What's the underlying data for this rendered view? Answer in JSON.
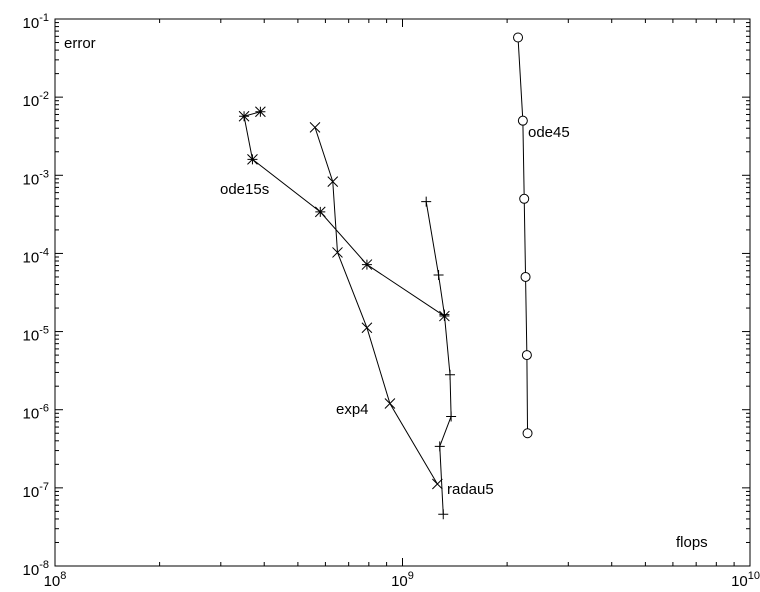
{
  "chart_data": {
    "type": "line",
    "title": "",
    "xlabel": "flops",
    "ylabel": "error",
    "x_scale": "log",
    "y_scale": "log",
    "xlim": [
      100000000,
      10000000000
    ],
    "ylim": [
      1e-08,
      0.1
    ],
    "grid": false,
    "legend": "none",
    "x_ticks": [
      {
        "value": 100000000,
        "base": "10",
        "exp": "8"
      },
      {
        "value": 1000000000,
        "base": "10",
        "exp": "9"
      },
      {
        "value": 10000000000,
        "base": "10",
        "exp": "10"
      }
    ],
    "y_ticks": [
      {
        "value": 0.1,
        "base": "10",
        "exp": "-1"
      },
      {
        "value": 0.01,
        "base": "10",
        "exp": "-2"
      },
      {
        "value": 0.001,
        "base": "10",
        "exp": "-3"
      },
      {
        "value": 0.0001,
        "base": "10",
        "exp": "-4"
      },
      {
        "value": 1e-05,
        "base": "10",
        "exp": "-5"
      },
      {
        "value": 1e-06,
        "base": "10",
        "exp": "-6"
      },
      {
        "value": 1e-07,
        "base": "10",
        "exp": "-7"
      },
      {
        "value": 1e-08,
        "base": "10",
        "exp": "-8"
      }
    ],
    "series": [
      {
        "name": "ode45",
        "marker": "circle",
        "points": [
          [
            2150000000,
            0.058
          ],
          [
            2220000000,
            0.005
          ],
          [
            2240000000,
            0.0005
          ],
          [
            2260000000,
            5e-05
          ],
          [
            2280000000,
            5e-06
          ],
          [
            2290000000,
            5e-07
          ]
        ]
      },
      {
        "name": "ode15s",
        "marker": "asterisk",
        "points": [
          [
            390000000,
            0.0065
          ],
          [
            350000000,
            0.0057
          ],
          [
            370000000,
            0.0016
          ],
          [
            580000000,
            0.00034
          ],
          [
            790000000,
            7.2e-05
          ],
          [
            1320000000,
            1.58e-05
          ]
        ]
      },
      {
        "name": "exp4",
        "marker": "x",
        "points": [
          [
            560000000,
            0.0041
          ],
          [
            630000000,
            0.00083
          ],
          [
            650000000,
            0.000103
          ],
          [
            790000000,
            1.12e-05
          ],
          [
            920000000,
            1.2e-06
          ],
          [
            1260000000,
            1.12e-07
          ]
        ]
      },
      {
        "name": "radau5",
        "marker": "plus",
        "points": [
          [
            1170000000,
            0.00046
          ],
          [
            1270000000,
            5.3e-05
          ],
          [
            1320000000,
            1.65e-05
          ],
          [
            1370000000,
            2.8e-06
          ],
          [
            1380000000,
            8.2e-07
          ],
          [
            1280000000,
            3.4e-07
          ],
          [
            1310000000,
            4.6e-08
          ]
        ]
      }
    ]
  }
}
